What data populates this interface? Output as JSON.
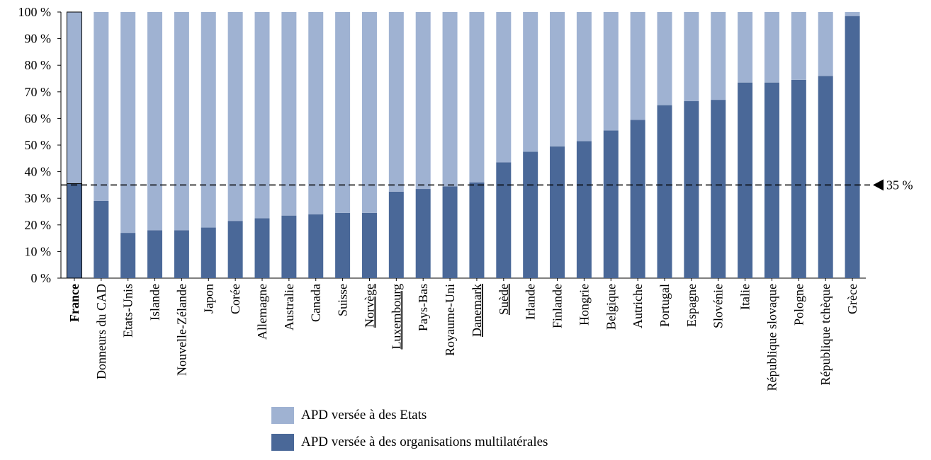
{
  "chart_data": {
    "type": "bar",
    "stacked": true,
    "categories": [
      "France",
      "Donneurs du CAD",
      "Etats-Unis",
      "Islande",
      "Nouvelle-Zélande",
      "Japon",
      "Corée",
      "Allemagne",
      "Australie",
      "Canada",
      "Suisse",
      "Norvège",
      "Luxembourg",
      "Pays-Bas",
      "Royaume-Uni",
      "Danemark",
      "Suède",
      "Irlande",
      "Finlande",
      "Hongrie",
      "Belgique",
      "Autriche",
      "Portugal",
      "Espagne",
      "Slovénie",
      "Italie",
      "République slovaque",
      "Pologne",
      "République tchèque",
      "Grèce"
    ],
    "highlight_category": "France",
    "underlined_categories": [
      "Norvège",
      "Luxembourg",
      "Danemark",
      "Suède"
    ],
    "series": [
      {
        "name": "APD versée à des organisations multilatérales",
        "color": "#4a6898",
        "values": [
          35.5,
          29,
          17,
          18,
          18,
          19,
          21.5,
          22.5,
          23.5,
          24,
          24.5,
          24.5,
          32.5,
          33.5,
          34.5,
          36,
          43.5,
          47.5,
          49.5,
          51.5,
          55.5,
          59.5,
          65,
          66.5,
          67,
          73.5,
          73.5,
          74.5,
          76,
          98.5
        ]
      },
      {
        "name": "APD versée à des Etats",
        "color": "#9fb2d2",
        "values": [
          64.5,
          71,
          83,
          82,
          82,
          81,
          78.5,
          77.5,
          76.5,
          76,
          75.5,
          75.5,
          67.5,
          66.5,
          65.5,
          64,
          56.5,
          52.5,
          50.5,
          48.5,
          44.5,
          40.5,
          35,
          33.5,
          33,
          26.5,
          26.5,
          25.5,
          24,
          1.5
        ]
      }
    ],
    "ylim": [
      0,
      100
    ],
    "yticks": [
      "0 %",
      "10 %",
      "20 %",
      "30 %",
      "40 %",
      "50 %",
      "60 %",
      "70 %",
      "80 %",
      "90 %",
      "100 %"
    ],
    "reference_line": {
      "value": 35,
      "label": "35 %",
      "style": "dashed"
    },
    "legend_placement": "bottom-center"
  },
  "legend": [
    {
      "label": "APD versée à des Etats",
      "color": "#9fb2d2"
    },
    {
      "label": "APD versée à des organisations multilatérales",
      "color": "#4a6898"
    }
  ]
}
